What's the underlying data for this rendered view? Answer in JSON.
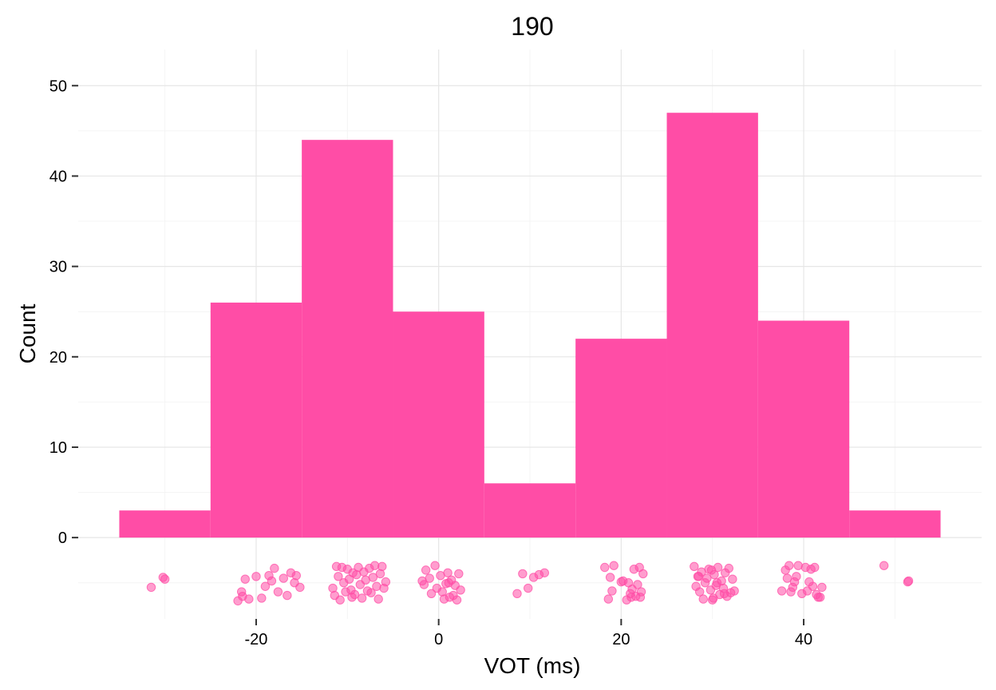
{
  "chart_data": {
    "type": "histogram",
    "title": "190",
    "xlabel": "VOT (ms)",
    "ylabel": "Count",
    "xlim": [
      -39.5,
      59.5
    ],
    "ylim": [
      -9,
      54
    ],
    "x_ticks": [
      -20,
      0,
      20,
      40
    ],
    "x_tick_labels": [
      "-20",
      "0",
      "20",
      "40"
    ],
    "y_ticks": [
      0,
      10,
      20,
      30,
      40,
      50
    ],
    "y_tick_labels": [
      "0",
      "10",
      "20",
      "30",
      "40",
      "50"
    ],
    "grid": true,
    "bar_color": "#FF4DA6",
    "bins": [
      {
        "x0": -35,
        "x1": -25,
        "count": 3
      },
      {
        "x0": -25,
        "x1": -15,
        "count": 26
      },
      {
        "x0": -15,
        "x1": -5,
        "count": 44
      },
      {
        "x0": -5,
        "x1": 5,
        "count": 25
      },
      {
        "x0": 5,
        "x1": 15,
        "count": 6
      },
      {
        "x0": 15,
        "x1": 25,
        "count": 22
      },
      {
        "x0": 25,
        "x1": 35,
        "count": 47
      },
      {
        "x0": 35,
        "x1": 45,
        "count": 24
      },
      {
        "x0": 45,
        "x1": 55,
        "count": 3
      }
    ],
    "rug_points": {
      "description": "jittered raw VOT observations drawn below zero",
      "y_range": [
        -7,
        -3
      ],
      "points": [
        {
          "x": -31.5,
          "y": -5.5
        },
        {
          "x": -30.2,
          "y": -4.4
        },
        {
          "x": -30.0,
          "y": -4.6
        },
        {
          "x": -22.0,
          "y": -7.0
        },
        {
          "x": -21.6,
          "y": -6.0
        },
        {
          "x": -21.2,
          "y": -4.6
        },
        {
          "x": -20.8,
          "y": -6.8
        },
        {
          "x": -20.0,
          "y": -4.3
        },
        {
          "x": -19.4,
          "y": -6.7
        },
        {
          "x": -19.0,
          "y": -5.4
        },
        {
          "x": -18.6,
          "y": -4.2
        },
        {
          "x": -18.0,
          "y": -3.4
        },
        {
          "x": -17.6,
          "y": -6.0
        },
        {
          "x": -17.0,
          "y": -4.5
        },
        {
          "x": -16.6,
          "y": -6.4
        },
        {
          "x": -16.2,
          "y": -3.9
        },
        {
          "x": -15.8,
          "y": -5.0
        },
        {
          "x": -15.6,
          "y": -4.2
        },
        {
          "x": -15.2,
          "y": -5.5
        },
        {
          "x": -21.5,
          "y": -6.5
        },
        {
          "x": -18.3,
          "y": -4.8
        },
        {
          "x": -11.6,
          "y": -5.6
        },
        {
          "x": -11.4,
          "y": -6.4
        },
        {
          "x": -11.2,
          "y": -3.2
        },
        {
          "x": -11.0,
          "y": -4.3
        },
        {
          "x": -10.8,
          "y": -6.9
        },
        {
          "x": -10.6,
          "y": -3.3
        },
        {
          "x": -10.4,
          "y": -5.0
        },
        {
          "x": -10.2,
          "y": -6.0
        },
        {
          "x": -10.0,
          "y": -3.5
        },
        {
          "x": -9.8,
          "y": -4.6
        },
        {
          "x": -9.6,
          "y": -5.8
        },
        {
          "x": -9.4,
          "y": -3.9
        },
        {
          "x": -9.2,
          "y": -6.3
        },
        {
          "x": -9.0,
          "y": -4.1
        },
        {
          "x": -8.8,
          "y": -3.3
        },
        {
          "x": -8.6,
          "y": -5.2
        },
        {
          "x": -8.4,
          "y": -6.7
        },
        {
          "x": -8.2,
          "y": -3.8
        },
        {
          "x": -8.0,
          "y": -4.7
        },
        {
          "x": -7.8,
          "y": -5.9
        },
        {
          "x": -7.6,
          "y": -3.4
        },
        {
          "x": -7.4,
          "y": -6.1
        },
        {
          "x": -7.2,
          "y": -4.4
        },
        {
          "x": -7.0,
          "y": -3.1
        },
        {
          "x": -6.8,
          "y": -5.4
        },
        {
          "x": -6.6,
          "y": -6.8
        },
        {
          "x": -6.4,
          "y": -4.0
        },
        {
          "x": -6.2,
          "y": -3.2
        },
        {
          "x": -6.0,
          "y": -5.6
        },
        {
          "x": -5.8,
          "y": -4.9
        },
        {
          "x": -9.5,
          "y": -6.6
        },
        {
          "x": -1.8,
          "y": -4.8
        },
        {
          "x": -1.6,
          "y": -5.2
        },
        {
          "x": -1.4,
          "y": -3.6
        },
        {
          "x": -0.8,
          "y": -6.2
        },
        {
          "x": -0.4,
          "y": -3.1
        },
        {
          "x": -0.2,
          "y": -5.6
        },
        {
          "x": 0.2,
          "y": -4.2
        },
        {
          "x": 0.4,
          "y": -6.0
        },
        {
          "x": 0.8,
          "y": -5.1
        },
        {
          "x": 1.0,
          "y": -3.9
        },
        {
          "x": 1.2,
          "y": -6.6
        },
        {
          "x": 1.4,
          "y": -4.7
        },
        {
          "x": 1.6,
          "y": -6.4
        },
        {
          "x": 1.8,
          "y": -5.3
        },
        {
          "x": 2.0,
          "y": -6.9
        },
        {
          "x": 2.2,
          "y": -4.0
        },
        {
          "x": 2.4,
          "y": -5.8
        },
        {
          "x": 0.6,
          "y": -6.8
        },
        {
          "x": -1.0,
          "y": -4.5
        },
        {
          "x": 1.1,
          "y": -5.0
        },
        {
          "x": 8.6,
          "y": -6.2
        },
        {
          "x": 9.2,
          "y": -4.0
        },
        {
          "x": 9.8,
          "y": -5.6
        },
        {
          "x": 10.4,
          "y": -4.4
        },
        {
          "x": 11.0,
          "y": -4.1
        },
        {
          "x": 11.6,
          "y": -3.9
        },
        {
          "x": 18.2,
          "y": -3.3
        },
        {
          "x": 18.6,
          "y": -6.8
        },
        {
          "x": 18.8,
          "y": -4.4
        },
        {
          "x": 19.0,
          "y": -5.9
        },
        {
          "x": 19.2,
          "y": -3.1
        },
        {
          "x": 20.2,
          "y": -4.8
        },
        {
          "x": 20.6,
          "y": -6.9
        },
        {
          "x": 20.8,
          "y": -5.0
        },
        {
          "x": 21.0,
          "y": -6.2
        },
        {
          "x": 21.2,
          "y": -5.7
        },
        {
          "x": 21.4,
          "y": -3.5
        },
        {
          "x": 21.6,
          "y": -6.5
        },
        {
          "x": 21.8,
          "y": -5.2
        },
        {
          "x": 22.0,
          "y": -3.3
        },
        {
          "x": 22.2,
          "y": -6.0
        },
        {
          "x": 22.4,
          "y": -4.0
        },
        {
          "x": 20.0,
          "y": -4.9
        },
        {
          "x": 21.1,
          "y": -6.6
        },
        {
          "x": 22.1,
          "y": -6.6
        },
        {
          "x": 28.0,
          "y": -3.2
        },
        {
          "x": 28.2,
          "y": -5.4
        },
        {
          "x": 28.4,
          "y": -4.3
        },
        {
          "x": 28.6,
          "y": -6.0
        },
        {
          "x": 28.8,
          "y": -3.8
        },
        {
          "x": 29.0,
          "y": -6.8
        },
        {
          "x": 29.2,
          "y": -5.0
        },
        {
          "x": 29.4,
          "y": -4.5
        },
        {
          "x": 29.6,
          "y": -3.5
        },
        {
          "x": 29.8,
          "y": -5.8
        },
        {
          "x": 30.0,
          "y": -6.9
        },
        {
          "x": 30.2,
          "y": -4.1
        },
        {
          "x": 30.4,
          "y": -5.3
        },
        {
          "x": 30.6,
          "y": -3.3
        },
        {
          "x": 30.8,
          "y": -6.3
        },
        {
          "x": 31.0,
          "y": -4.8
        },
        {
          "x": 31.2,
          "y": -5.6
        },
        {
          "x": 31.4,
          "y": -3.9
        },
        {
          "x": 31.6,
          "y": -6.5
        },
        {
          "x": 31.8,
          "y": -3.4
        },
        {
          "x": 32.0,
          "y": -6.1
        },
        {
          "x": 32.2,
          "y": -4.6
        },
        {
          "x": 32.4,
          "y": -5.9
        },
        {
          "x": 28.5,
          "y": -4.3
        },
        {
          "x": 29.9,
          "y": -3.6
        },
        {
          "x": 30.1,
          "y": -6.7
        },
        {
          "x": 31.3,
          "y": -6.2
        },
        {
          "x": 30.5,
          "y": -5.0
        },
        {
          "x": 37.6,
          "y": -5.9
        },
        {
          "x": 38.0,
          "y": -3.6
        },
        {
          "x": 38.2,
          "y": -4.5
        },
        {
          "x": 38.4,
          "y": -3.1
        },
        {
          "x": 38.6,
          "y": -6.0
        },
        {
          "x": 38.8,
          "y": -5.5
        },
        {
          "x": 39.0,
          "y": -4.9
        },
        {
          "x": 39.4,
          "y": -3.1
        },
        {
          "x": 39.8,
          "y": -6.2
        },
        {
          "x": 40.2,
          "y": -3.3
        },
        {
          "x": 40.4,
          "y": -5.9
        },
        {
          "x": 40.6,
          "y": -4.9
        },
        {
          "x": 40.8,
          "y": -3.5
        },
        {
          "x": 41.0,
          "y": -5.4
        },
        {
          "x": 41.2,
          "y": -3.3
        },
        {
          "x": 41.4,
          "y": -6.3
        },
        {
          "x": 41.6,
          "y": -6.6
        },
        {
          "x": 41.8,
          "y": -6.6
        },
        {
          "x": 42.0,
          "y": -5.5
        },
        {
          "x": 39.2,
          "y": -4.3
        },
        {
          "x": 48.8,
          "y": -3.1
        },
        {
          "x": 51.4,
          "y": -4.9
        },
        {
          "x": 51.5,
          "y": -4.8
        }
      ]
    }
  }
}
